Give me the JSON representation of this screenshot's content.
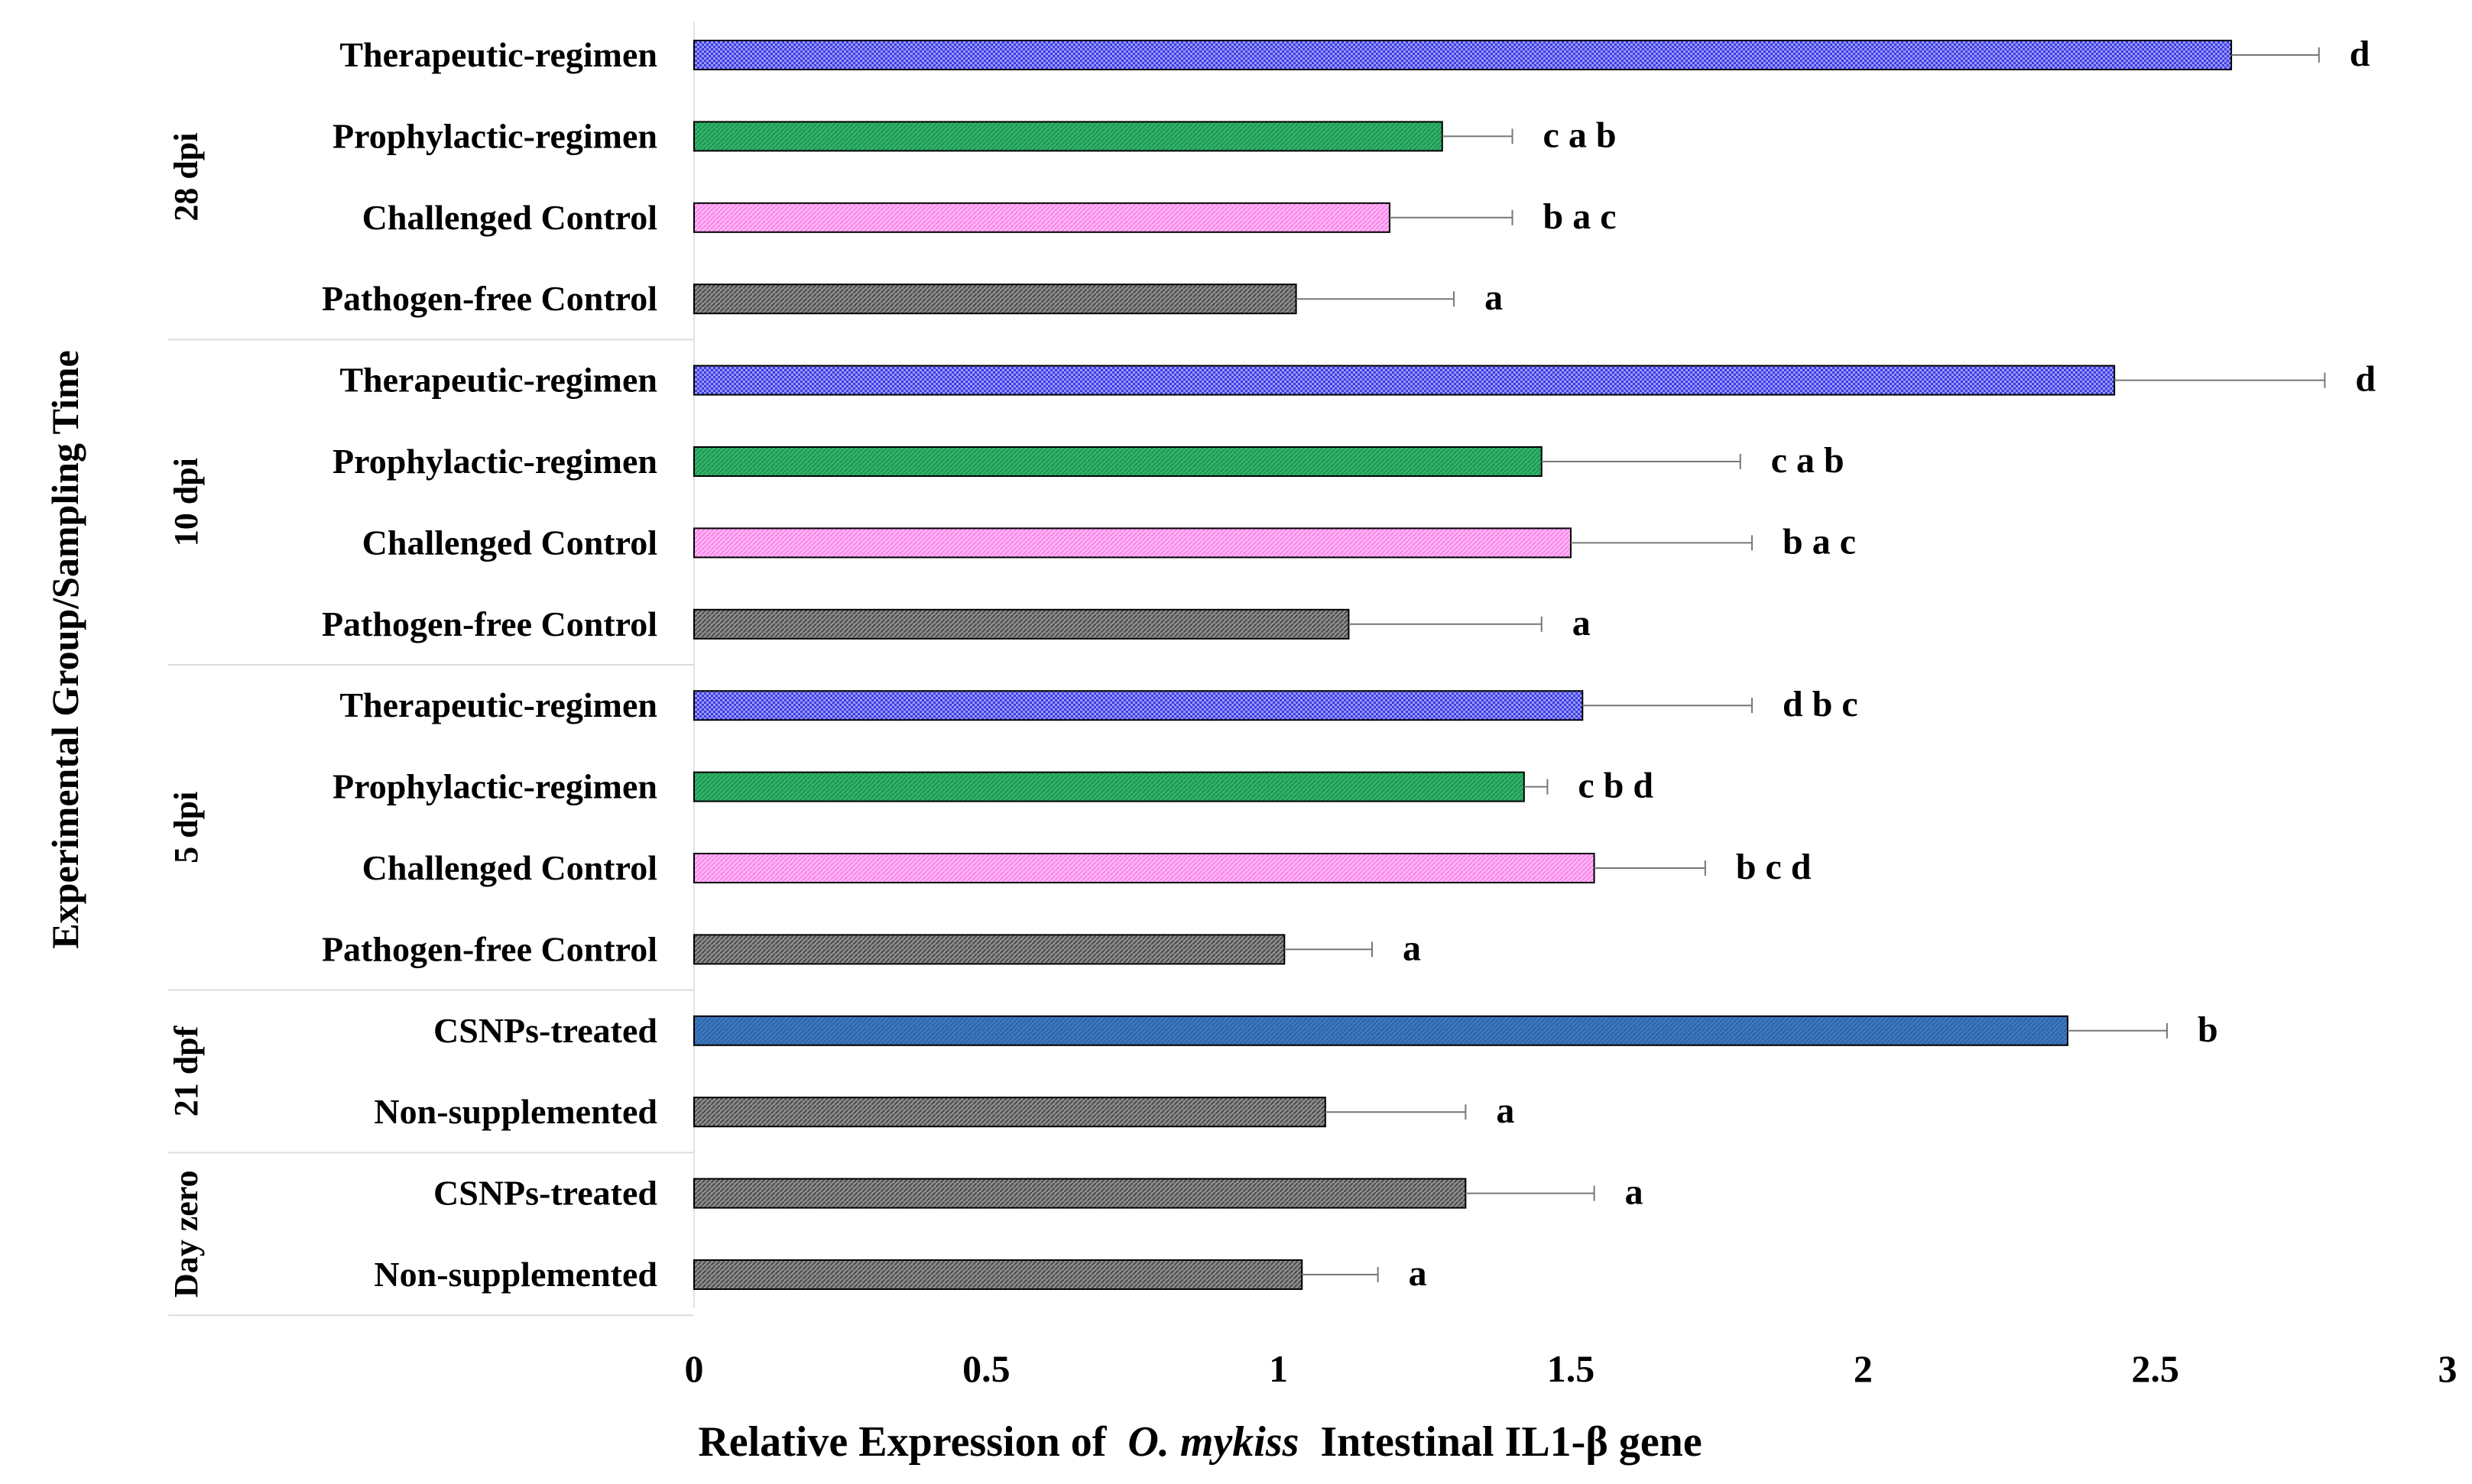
{
  "chart_data": {
    "type": "bar",
    "orientation": "horizontal",
    "title": "",
    "xlabel": {
      "prefix": "Relative Expression of",
      "italic": "O. mykiss",
      "suffix": "Intestinal  IL1-β gene"
    },
    "ylabel": "Experimental Group/Sampling Time",
    "xlim": [
      0,
      3
    ],
    "xticks": [
      {
        "value": 0,
        "label": "0"
      },
      {
        "value": 0.5,
        "label": "0.5"
      },
      {
        "value": 1,
        "label": "1"
      },
      {
        "value": 1.5,
        "label": "1.5"
      },
      {
        "value": 2,
        "label": "2"
      },
      {
        "value": 2.5,
        "label": "2.5"
      },
      {
        "value": 3,
        "label": "3"
      }
    ],
    "groups": [
      {
        "label": "28 dpi",
        "bars": [
          {
            "category": "Therapeutic-regimen",
            "value": 2.63,
            "error": 0.15,
            "letters": "d",
            "fill": "therapeutic"
          },
          {
            "category": "Prophylactic-regimen",
            "value": 1.28,
            "error": 0.12,
            "letters": "c a b",
            "fill": "prophylactic"
          },
          {
            "category": "Challenged Control",
            "value": 1.19,
            "error": 0.21,
            "letters": "b a c",
            "fill": "challenged"
          },
          {
            "category": "Pathogen-free Control",
            "value": 1.03,
            "error": 0.27,
            "letters": "a",
            "fill": "gray"
          }
        ]
      },
      {
        "label": "10 dpi",
        "bars": [
          {
            "category": "Therapeutic-regimen",
            "value": 2.43,
            "error": 0.36,
            "letters": "d",
            "fill": "therapeutic"
          },
          {
            "category": "Prophylactic-regimen",
            "value": 1.45,
            "error": 0.34,
            "letters": "c a b",
            "fill": "prophylactic"
          },
          {
            "category": "Challenged Control",
            "value": 1.5,
            "error": 0.31,
            "letters": "b a c",
            "fill": "challenged"
          },
          {
            "category": "Pathogen-free Control",
            "value": 1.12,
            "error": 0.33,
            "letters": "a",
            "fill": "gray"
          }
        ]
      },
      {
        "label": "5 dpi",
        "bars": [
          {
            "category": "Therapeutic-regimen",
            "value": 1.52,
            "error": 0.29,
            "letters": "d b c",
            "fill": "therapeutic"
          },
          {
            "category": "Prophylactic-regimen",
            "value": 1.42,
            "error": 0.04,
            "letters": "c b d",
            "fill": "prophylactic"
          },
          {
            "category": "Challenged Control",
            "value": 1.54,
            "error": 0.19,
            "letters": "b c d",
            "fill": "challenged"
          },
          {
            "category": "Pathogen-free Control",
            "value": 1.01,
            "error": 0.15,
            "letters": "a",
            "fill": "gray"
          }
        ]
      },
      {
        "label": "21 dpf",
        "bars": [
          {
            "category": "CSNPs-treated",
            "value": 2.35,
            "error": 0.17,
            "letters": "b",
            "fill": "csnps"
          },
          {
            "category": "Non-supplemented",
            "value": 1.08,
            "error": 0.24,
            "letters": "a",
            "fill": "gray"
          }
        ]
      },
      {
        "label": "Day zero",
        "bars": [
          {
            "category": "CSNPs-treated",
            "value": 1.32,
            "error": 0.22,
            "letters": "a",
            "fill": "gray"
          },
          {
            "category": "Non-supplemented",
            "value": 1.04,
            "error": 0.13,
            "letters": "a",
            "fill": "gray"
          }
        ]
      }
    ]
  },
  "colors": {
    "therapeutic": "#3c3ce6",
    "prophylactic": "#2fb36a",
    "challenged": "#ff9ef2",
    "csnps": "#3d78c0",
    "gray": "#7a7a7a",
    "grid": "#dddddd",
    "text": "#000000"
  }
}
